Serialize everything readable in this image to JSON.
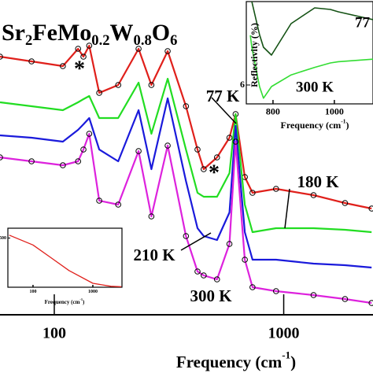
{
  "chart_data": [
    {
      "type": "line",
      "log_x": true,
      "title": [
        "Sr",
        "2",
        "FeMo",
        "0.2",
        "W",
        "0.8",
        "O",
        "6"
      ],
      "x_label": [
        "Frequency  (cm",
        "-1",
        ")"
      ],
      "xlim": [
        58,
        2450
      ],
      "xticks": [
        100,
        1000
      ],
      "ylim": [
        0,
        100
      ],
      "annotations": [
        "*",
        "*"
      ],
      "x": [
        58,
        79.6,
        109,
        127,
        134,
        142,
        157,
        190,
        233,
        265,
        312,
        375,
        421,
        448,
        512,
        580,
        617,
        677,
        731,
        926,
        1349,
        1850,
        2416
      ],
      "series": [
        {
          "name": "77 K",
          "color": "#e0201b",
          "markers": true,
          "values": [
            82,
            80.5,
            79,
            84.5,
            82,
            85.5,
            70.5,
            73,
            84.5,
            73,
            83.75,
            66.25,
            52.5,
            46.25,
            50,
            56.25,
            63.75,
            43.75,
            38.75,
            40,
            38,
            35.5,
            33.75
          ]
        },
        {
          "name": "180 K",
          "color": "#22dd22",
          "markers": false,
          "values": [
            67.5,
            66.25,
            65,
            67.5,
            68.5,
            69.5,
            62.5,
            62.5,
            73.75,
            57.5,
            75,
            52.5,
            38.75,
            37.5,
            37.5,
            45,
            63.75,
            35,
            26.25,
            27.5,
            27.5,
            27,
            26.25
          ]
        },
        {
          "name": "210 K",
          "color": "#1a1adb",
          "markers": false,
          "values": [
            57,
            56.25,
            55,
            58.75,
            60.5,
            62.5,
            52.5,
            48.75,
            65,
            46.25,
            68.75,
            42.5,
            27.5,
            25,
            23.75,
            32.5,
            60,
            26.25,
            17.5,
            17.5,
            16.25,
            15.75,
            15
          ]
        },
        {
          "name": "300 K",
          "color": "#dd22dd",
          "markers": true,
          "values": [
            50,
            48.75,
            47.5,
            48.75,
            52.5,
            57.5,
            36.25,
            35,
            52,
            31.25,
            53.75,
            25,
            13.75,
            12.5,
            11.25,
            22.5,
            55,
            17.5,
            8.75,
            7.5,
            6.25,
            5,
            3.75
          ]
        }
      ]
    },
    {
      "type": "line",
      "log_x": false,
      "y_label": "Reflectivity (%)",
      "x_label": [
        "Frequency (cm",
        "-1",
        ")"
      ],
      "xlim": [
        713,
        1126
      ],
      "xticks": [
        800,
        1000
      ],
      "ylim": [
        5.7,
        7.325
      ],
      "yticks": [
        6
      ],
      "x": [
        726,
        731,
        756,
        769,
        795,
        859,
        936,
        987,
        1013,
        1126
      ],
      "series": [
        {
          "name": "77",
          "color": "#145214",
          "values": [
            null,
            7.325,
            6.8,
            6.6,
            6.475,
            6.975,
            7.225,
            7.2,
            7.163,
            7.038
          ]
        },
        {
          "name": "300 K",
          "color": "#33dd33",
          "values": [
            6.79,
            6.6,
            5.975,
            5.79,
            5.975,
            6.16,
            6.28,
            6.35,
            6.37,
            6.41
          ]
        }
      ]
    },
    {
      "type": "line",
      "log_x": true,
      "x_label": [
        "Frequency (cm",
        "-1",
        ")"
      ],
      "xlim": [
        38,
        3070
      ],
      "xticks": [
        100,
        1000
      ],
      "ylim": [
        0,
        600
      ],
      "yticks": [
        500
      ],
      "x": [
        40,
        100,
        200,
        400,
        1000,
        2000,
        3000
      ],
      "series": [
        {
          "color": "#e0201b",
          "values": [
            530,
            430,
            300,
            170,
            40,
            10,
            5
          ]
        }
      ]
    }
  ]
}
